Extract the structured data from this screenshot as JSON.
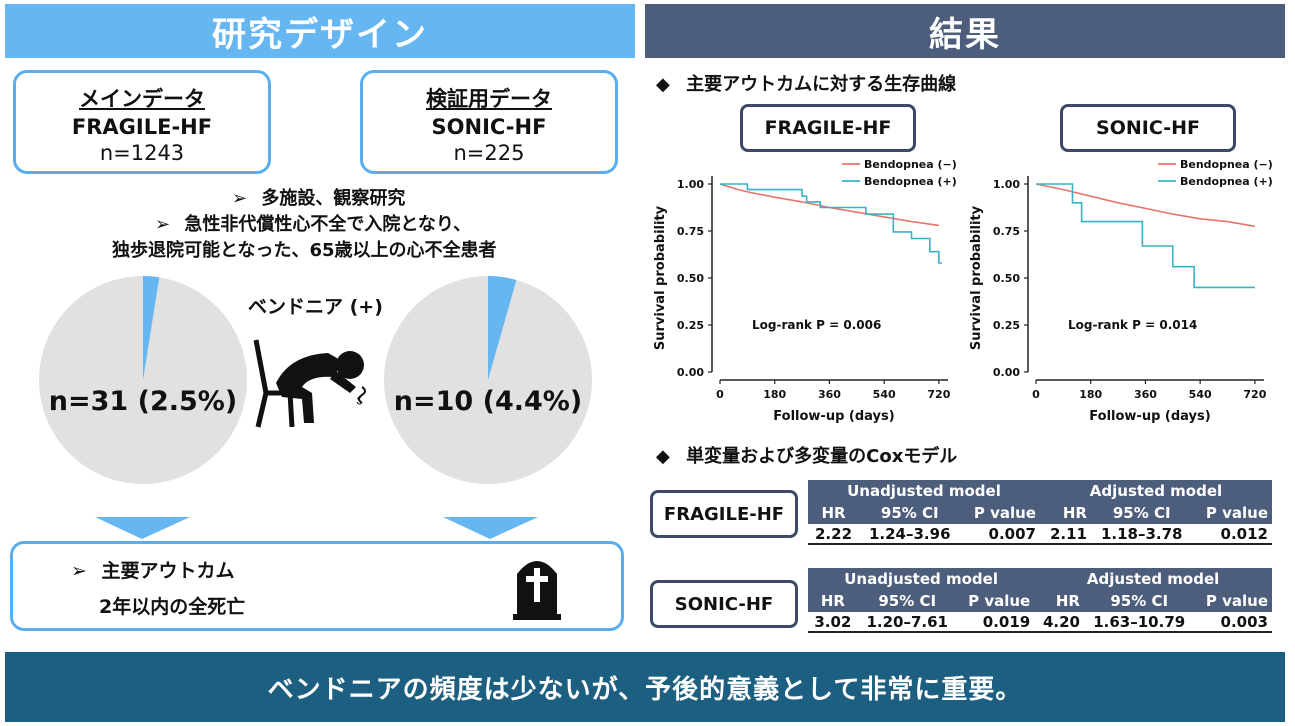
{
  "left_header": "研究デザイン",
  "right_header": "結果",
  "cohorts": {
    "main": {
      "title": "メインデータ",
      "name": "FRAGILE-HF",
      "n": "n=1243"
    },
    "validation": {
      "title": "検証用データ",
      "name": "SONIC-HF",
      "n": "n=225"
    }
  },
  "design_points": {
    "p1": "多施設、観察研究",
    "p2a": "急性非代償性心不全で入院となり、",
    "p2b": "独歩退院可能となった、65歳以上の心不全患者"
  },
  "bendopnea_label": "ベンドニア (+)",
  "pies": {
    "fragile": {
      "label": "n=31 (2.5%)",
      "fraction": 0.025
    },
    "sonic": {
      "label": "n=10 (4.4%)",
      "fraction": 0.044
    }
  },
  "outcome": {
    "line1": "主要アウトカム",
    "line2": "2年以内の全死亡"
  },
  "survival_section_title": "主要アウトカムに対する生存曲線",
  "cox_section_title": "単変量および多変量のCoxモデル",
  "bullet_glyph": "➢",
  "diamond_glyph": "◆",
  "colors": {
    "light_blue": "#66b6f2",
    "navy": "#4d5e7c",
    "dark_teal": "#1d5f80",
    "minus_series": "#e8756a",
    "plus_series": "#38b3c6",
    "pie_grey": "#e1e1e1"
  },
  "chart_data": [
    {
      "type": "line",
      "panel_label": "FRAGILE-HF",
      "xlabel": "Follow-up (days)",
      "ylabel": "Survival probability",
      "xticks": [
        0,
        180,
        360,
        540,
        720
      ],
      "yticks": [
        "0.00",
        "0.25",
        "0.50",
        "0.75",
        "1.00"
      ],
      "xlim": [
        0,
        750
      ],
      "ylim": [
        0,
        1.0
      ],
      "annotation": "Log-rank P = 0.006",
      "legend_position": "top-right",
      "series": [
        {
          "name": "Bendopnea (−)",
          "color": "#e8756a",
          "x": [
            0,
            60,
            100,
            180,
            270,
            360,
            450,
            540,
            630,
            720
          ],
          "y": [
            1.0,
            0.97,
            0.955,
            0.93,
            0.905,
            0.875,
            0.85,
            0.825,
            0.8,
            0.78
          ]
        },
        {
          "name": "Bendopnea (+)",
          "color": "#38b3c6",
          "x": [
            0,
            90,
            90,
            270,
            270,
            285,
            285,
            330,
            330,
            480,
            480,
            570,
            570,
            630,
            630,
            690,
            690,
            720,
            720,
            730
          ],
          "y": [
            1.0,
            1.0,
            0.97,
            0.97,
            0.935,
            0.935,
            0.905,
            0.905,
            0.875,
            0.875,
            0.84,
            0.84,
            0.745,
            0.745,
            0.71,
            0.71,
            0.64,
            0.64,
            0.58,
            0.58
          ]
        }
      ]
    },
    {
      "type": "line",
      "panel_label": "SONIC-HF",
      "xlabel": "Follow-up (days)",
      "ylabel": "Survival probability",
      "xticks": [
        0,
        180,
        360,
        540,
        720
      ],
      "yticks": [
        "0.00",
        "0.25",
        "0.50",
        "0.75",
        "1.00"
      ],
      "xlim": [
        0,
        750
      ],
      "ylim": [
        0,
        1.0
      ],
      "annotation": "Log-rank P = 0.014",
      "legend_position": "top-right",
      "series": [
        {
          "name": "Bendopnea (−)",
          "color": "#e8756a",
          "x": [
            0,
            90,
            180,
            270,
            360,
            450,
            540,
            630,
            720
          ],
          "y": [
            1.0,
            0.97,
            0.935,
            0.9,
            0.87,
            0.84,
            0.815,
            0.8,
            0.775
          ]
        },
        {
          "name": "Bendopnea (+)",
          "color": "#38b3c6",
          "x": [
            0,
            120,
            120,
            150,
            150,
            350,
            350,
            450,
            450,
            520,
            520,
            720
          ],
          "y": [
            1.0,
            1.0,
            0.9,
            0.9,
            0.8,
            0.8,
            0.67,
            0.67,
            0.56,
            0.56,
            0.45,
            0.45
          ]
        }
      ]
    }
  ],
  "cox": {
    "group_headers": [
      "Unadjusted model",
      "Adjusted model"
    ],
    "col_headers": [
      "HR",
      "95% CI",
      "P value",
      "HR",
      "95% CI",
      "P value"
    ],
    "rows": {
      "fragile": {
        "label": "FRAGILE-HF",
        "values": [
          "2.22",
          "1.24–3.96",
          "0.007",
          "2.11",
          "1.18–3.78",
          "0.012"
        ]
      },
      "sonic": {
        "label": "SONIC-HF",
        "values": [
          "3.02",
          "1.20–7.61",
          "0.019",
          "4.20",
          "1.63–10.79",
          "0.003"
        ]
      }
    }
  },
  "conclusion": "ベンドニアの頻度は少ないが、予後的意義として非常に重要。"
}
